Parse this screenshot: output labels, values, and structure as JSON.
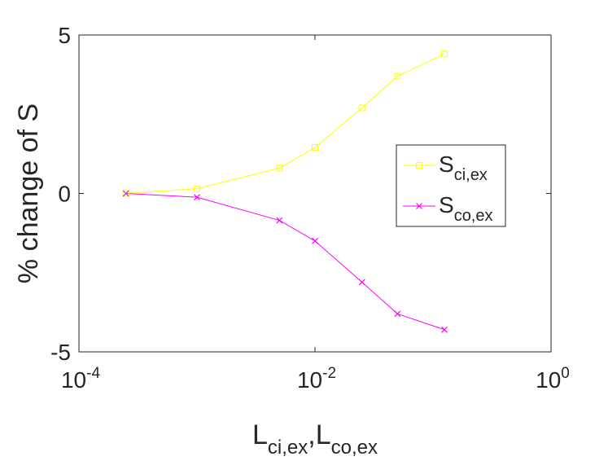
{
  "chart_data": {
    "type": "line",
    "ylabel": "% change of S",
    "xlabel": [
      {
        "text": "L",
        "sub": "ci,ex"
      },
      {
        "text": ",L",
        "sub": "co,ex"
      }
    ],
    "x": [
      0.00025,
      0.001,
      0.005,
      0.01,
      0.025,
      0.05,
      0.125
    ],
    "series": [
      {
        "name": "S",
        "name_sub": "ci,ex",
        "color": "#ffff00",
        "marker": "square",
        "values": [
          0,
          0.15,
          0.8,
          1.45,
          2.7,
          3.7,
          4.4
        ]
      },
      {
        "name": "S",
        "name_sub": "co,ex",
        "color": "#ff00ff",
        "marker": "x",
        "values": [
          0,
          -0.12,
          -0.85,
          -1.5,
          -2.8,
          -3.8,
          -4.3
        ]
      }
    ],
    "xlim": [
      0.0001,
      1
    ],
    "xscale": "log",
    "xticks": [
      {
        "value": 0.0001,
        "label": "10",
        "exponent": "-4"
      },
      {
        "value": 0.01,
        "label": "10",
        "exponent": "-2"
      },
      {
        "value": 1,
        "label": "10",
        "exponent": "0"
      }
    ],
    "ylim": [
      -5,
      5
    ],
    "yticks": [
      -5,
      0,
      5
    ],
    "legend": "right"
  }
}
